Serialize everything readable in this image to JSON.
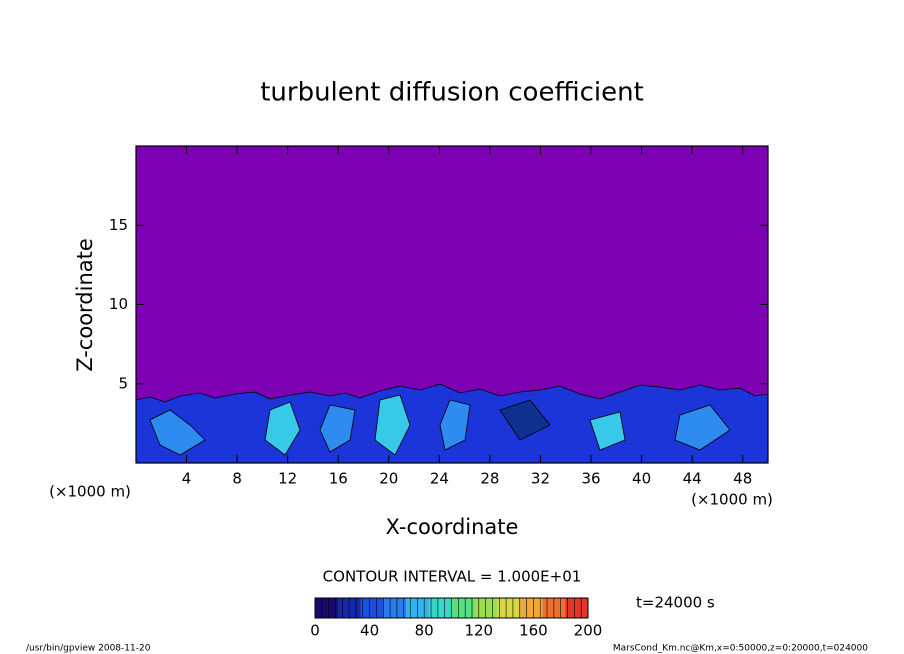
{
  "chart_data": {
    "type": "contour",
    "title": "turbulent diffusion coefficient",
    "x_label": "X-coordinate",
    "y_label": "Z-coordinate",
    "x_unit": "(×1000 m)",
    "y_unit": "(×1000 m)",
    "xlim": [
      0,
      50
    ],
    "xticks": [
      4,
      8,
      12,
      16,
      20,
      24,
      28,
      32,
      36,
      40,
      44,
      48
    ],
    "ylim": [
      0,
      20
    ],
    "yticks": [
      5,
      10,
      15
    ],
    "background_color": "#7d00b3",
    "contour_interval_text": "CONTOUR INTERVAL = 1.000E+01",
    "time_text": "t=24000 s",
    "colorbar": {
      "lim": [
        0,
        200
      ],
      "ticks": [
        0,
        40,
        80,
        120,
        160,
        200
      ],
      "colors": [
        "#1a0a6e",
        "#1428a8",
        "#1e50e0",
        "#2a7cf0",
        "#30b4f0",
        "#38d8c8",
        "#58e080",
        "#98e050",
        "#d8d840",
        "#f0a838",
        "#f07030",
        "#e03828"
      ]
    },
    "footer_left": "/usr/bin/gpview   2008-11-20",
    "footer_right": "MarsCond_Km.nc@Km,x=0:50000,z=0:20000,t=024000"
  }
}
